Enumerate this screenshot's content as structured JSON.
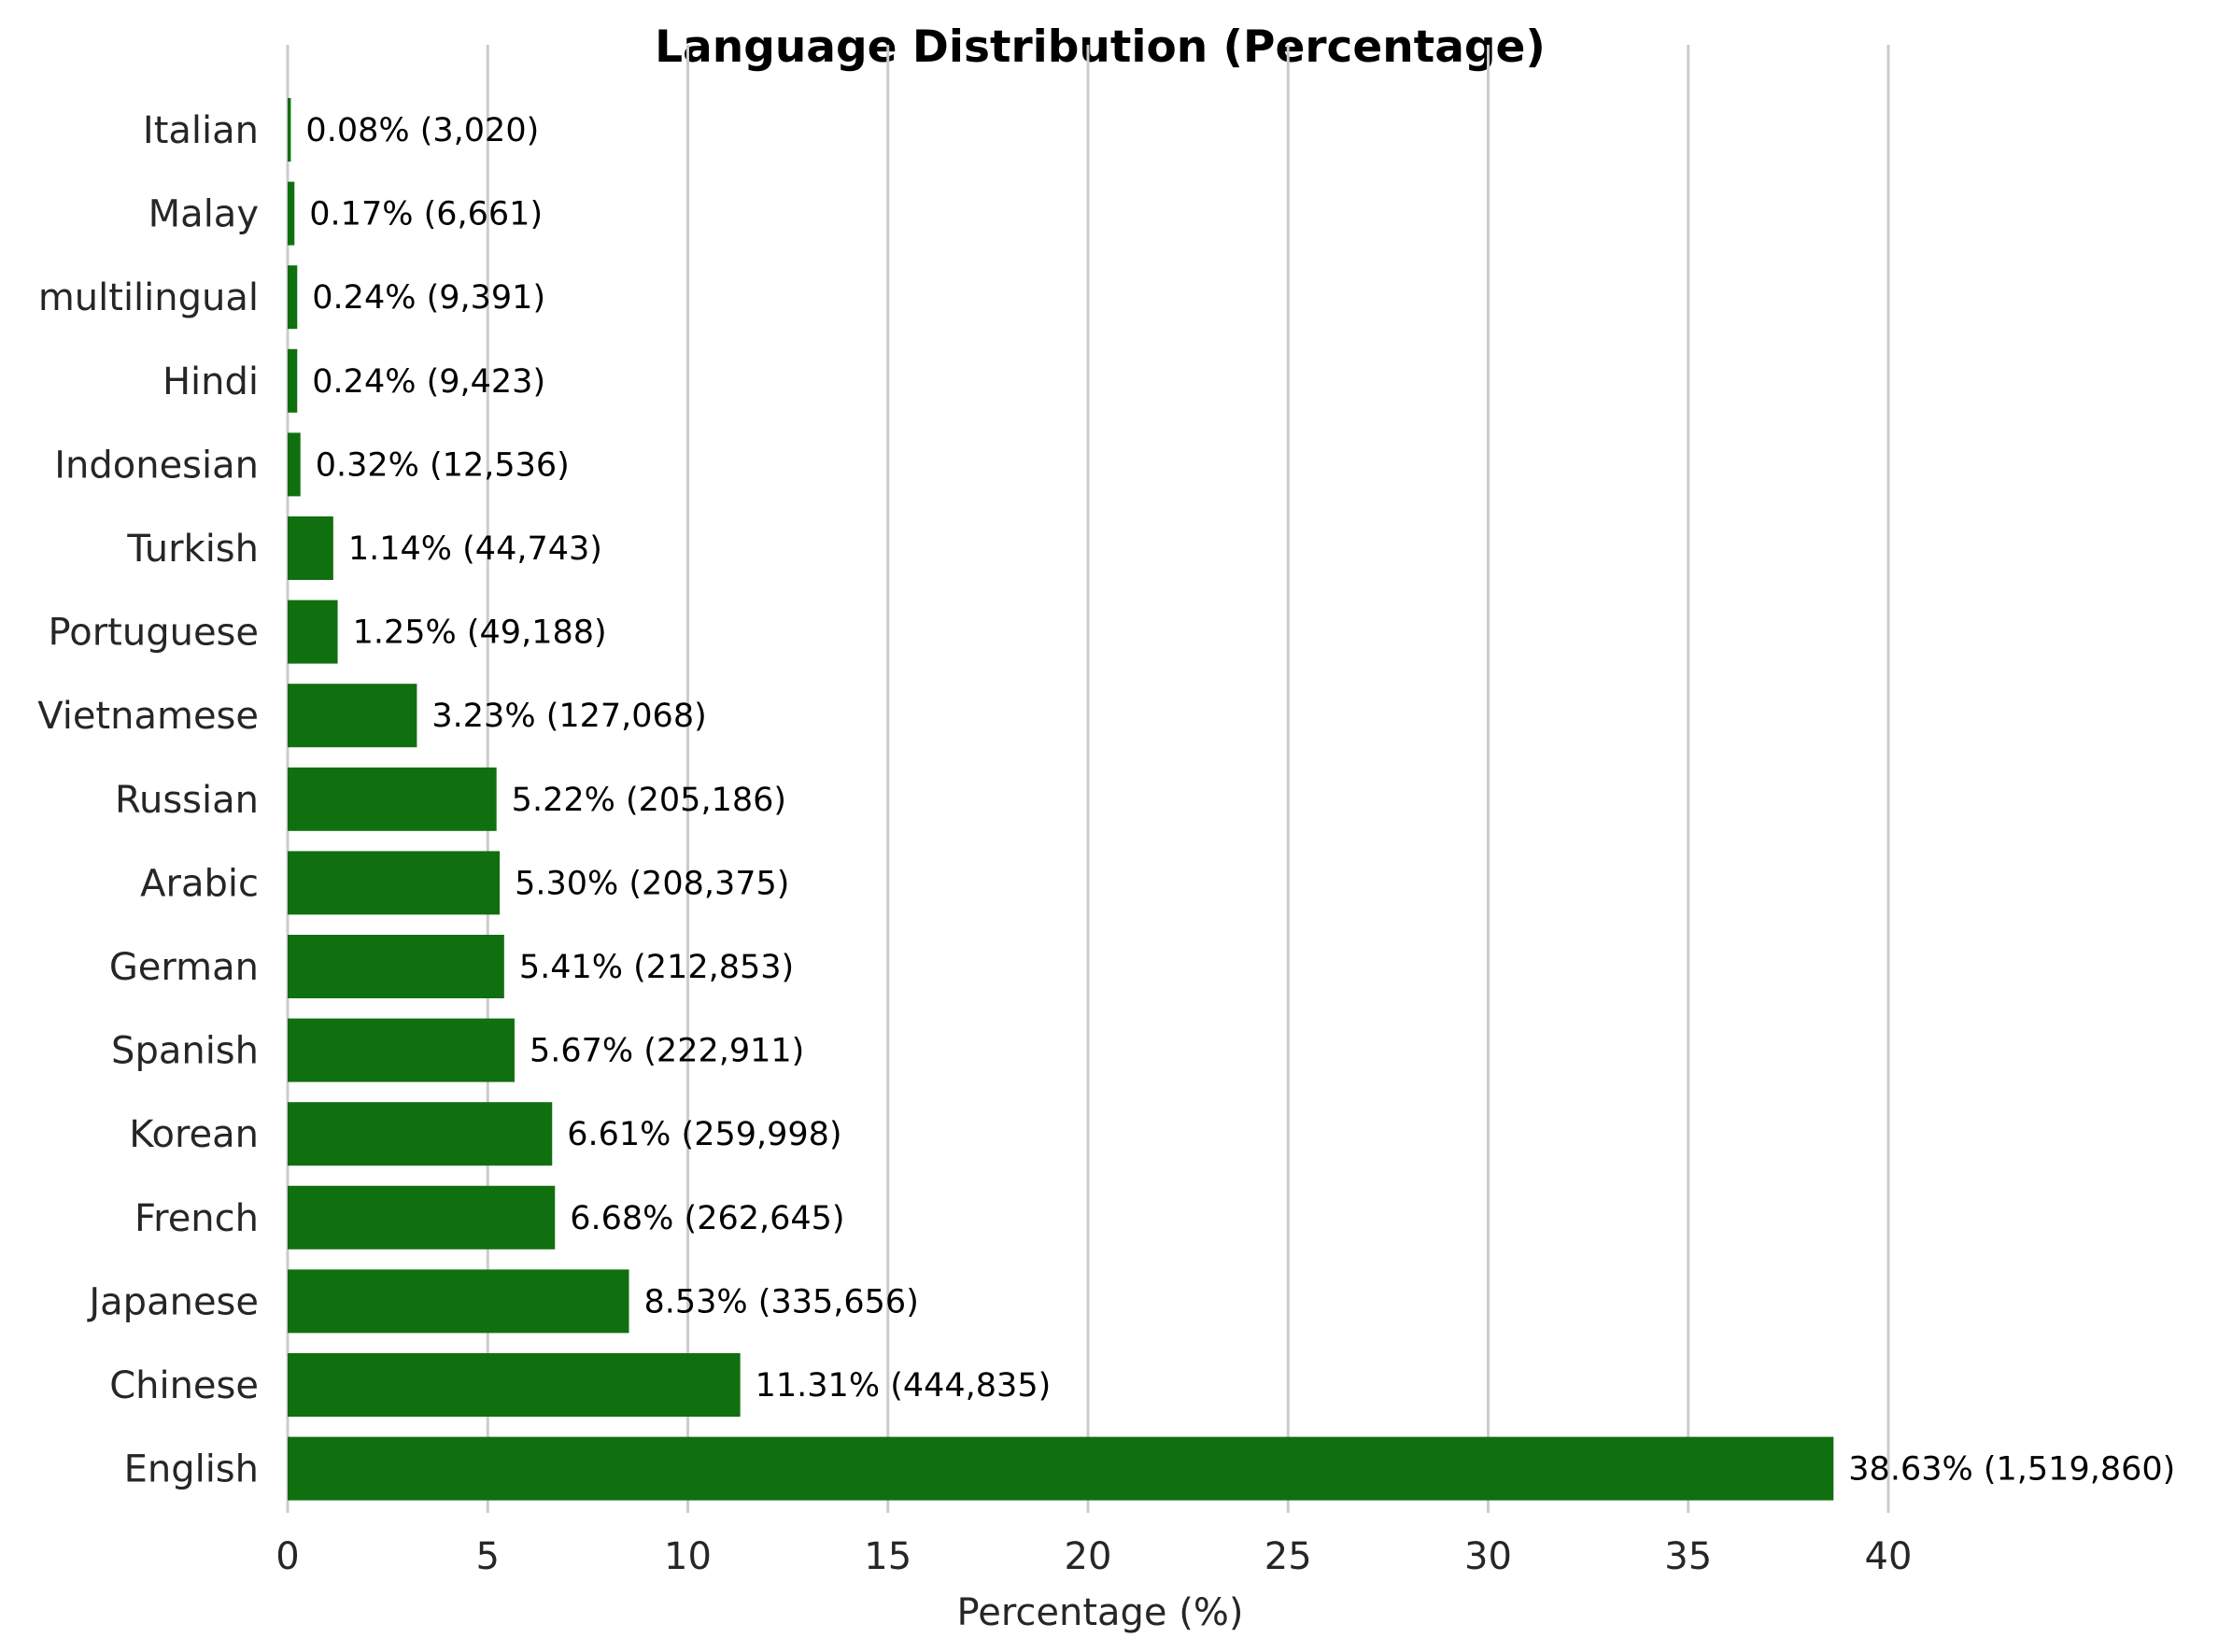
{
  "chart_data": {
    "type": "bar",
    "orientation": "horizontal",
    "title": "Language Distribution (Percentage)",
    "xlabel": "Percentage (%)",
    "ylabel": "",
    "xlim": [
      0,
      40
    ],
    "xticks": [
      "0",
      "5",
      "10",
      "15",
      "20",
      "25",
      "30",
      "35",
      "40"
    ],
    "grid": "vertical",
    "bar_color": "#107010",
    "grid_color": "#cccccc",
    "categories": [
      "Italian",
      "Malay",
      "multilingual",
      "Hindi",
      "Indonesian",
      "Turkish",
      "Portuguese",
      "Vietnamese",
      "Russian",
      "Arabic",
      "German",
      "Spanish",
      "Korean",
      "French",
      "Japanese",
      "Chinese",
      "English"
    ],
    "values": [
      0.08,
      0.17,
      0.24,
      0.24,
      0.32,
      1.14,
      1.25,
      3.23,
      5.22,
      5.3,
      5.41,
      5.67,
      6.61,
      6.68,
      8.53,
      11.31,
      38.63
    ],
    "counts": [
      3020,
      6661,
      9391,
      9423,
      12536,
      44743,
      49188,
      127068,
      205186,
      208375,
      212853,
      222911,
      259998,
      262645,
      335656,
      444835,
      1519860
    ],
    "data_labels": [
      "0.08% (3,020)",
      "0.17% (6,661)",
      "0.24% (9,391)",
      "0.24% (9,423)",
      "0.32% (12,536)",
      "1.14% (44,743)",
      "1.25% (49,188)",
      "3.23% (127,068)",
      "5.22% (205,186)",
      "5.30% (208,375)",
      "5.41% (212,853)",
      "5.67% (222,911)",
      "6.61% (259,998)",
      "6.68% (262,645)",
      "8.53% (335,656)",
      "11.31% (444,835)",
      "38.63% (1,519,860)"
    ]
  }
}
